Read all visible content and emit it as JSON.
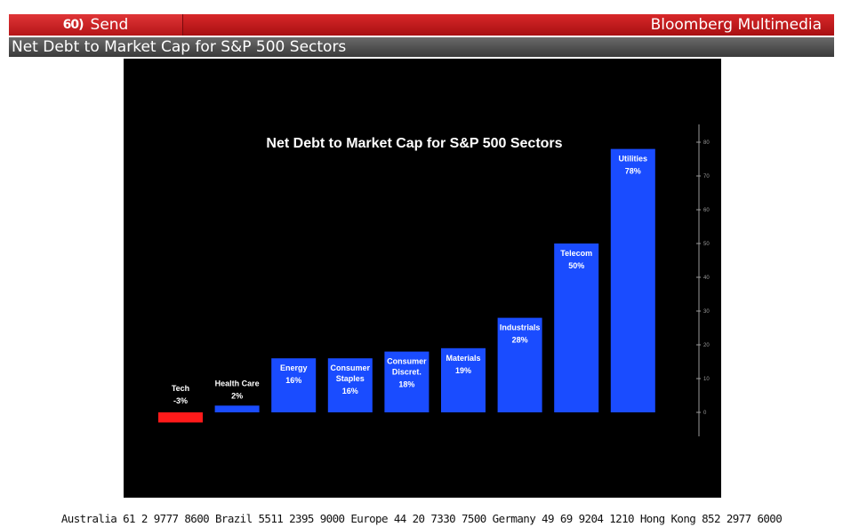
{
  "header": {
    "send_icon": "60)",
    "send_label": "Send",
    "brand": "Bloomberg Multimedia",
    "page_title": "Net Debt to Market Cap for S&P 500 Sectors"
  },
  "colors": {
    "positive": "#1a4cff",
    "negative": "#ff1a1a",
    "background": "#000000",
    "header_red": "#c41c1f"
  },
  "chart_data": {
    "type": "bar",
    "title": "Net Debt to Market Cap for S&P 500 Sectors",
    "categories": [
      [
        "Tech"
      ],
      [
        "Health Care"
      ],
      [
        "Energy"
      ],
      [
        "Consumer",
        "Staples"
      ],
      [
        "Consumer",
        "Discret."
      ],
      [
        "Materials"
      ],
      [
        "Industrials"
      ],
      [
        "Telecom"
      ],
      [
        "Utilities"
      ]
    ],
    "values": [
      -3,
      2,
      16,
      16,
      18,
      19,
      28,
      50,
      78
    ],
    "value_labels": [
      "-3%",
      "2%",
      "16%",
      "16%",
      "18%",
      "19%",
      "28%",
      "50%",
      "78%"
    ],
    "ylim": [
      0,
      80
    ],
    "yticks": [
      "0",
      "10",
      "20",
      "30",
      "40",
      "50",
      "60",
      "70",
      "80"
    ],
    "axis_side": "right",
    "grid": false
  },
  "footer": {
    "contacts": "Australia 61 2 9777 8600 Brazil 5511 2395 9000 Europe 44 20 7330 7500 Germany 49 69 9204 1210 Hong Kong 852 2977 6000"
  }
}
